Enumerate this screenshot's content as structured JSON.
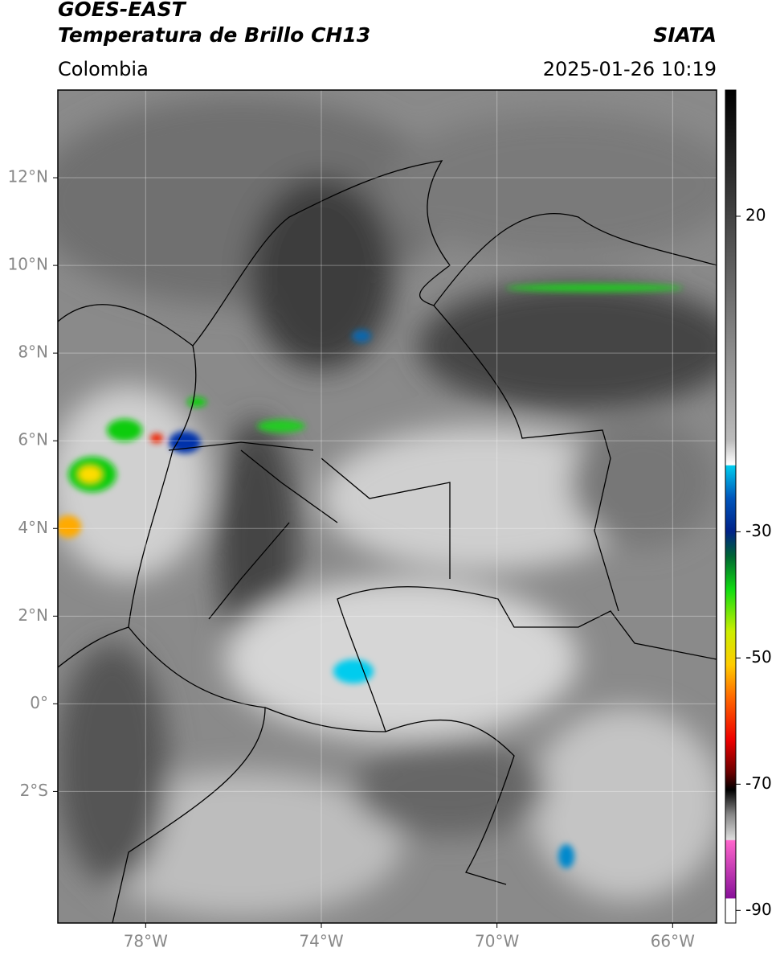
{
  "header": {
    "title": "GOES-EAST",
    "subtitle": "Temperatura de Brillo CH13",
    "region": "Colombia",
    "source": "SIATA",
    "timestamp": "2025-01-26 10:19"
  },
  "map": {
    "xlim": [
      -80,
      -65
    ],
    "ylim": [
      -5,
      14
    ],
    "xticks": [
      {
        "value": -78,
        "label": "78°W"
      },
      {
        "value": -74,
        "label": "74°W"
      },
      {
        "value": -70,
        "label": "70°W"
      },
      {
        "value": -66,
        "label": "66°W"
      }
    ],
    "yticks": [
      {
        "value": 12,
        "label": "12°N"
      },
      {
        "value": 10,
        "label": "10°N"
      },
      {
        "value": 8,
        "label": "8°N"
      },
      {
        "value": 6,
        "label": "6°N"
      },
      {
        "value": 4,
        "label": "4°N"
      },
      {
        "value": 2,
        "label": "2°N"
      },
      {
        "value": 0,
        "label": "0°"
      },
      {
        "value": -2,
        "label": "2°S"
      }
    ],
    "grid": true
  },
  "colorbar": {
    "lim": [
      -92,
      40
    ],
    "ticks": [
      20,
      -30,
      -50,
      -70,
      -90
    ]
  }
}
